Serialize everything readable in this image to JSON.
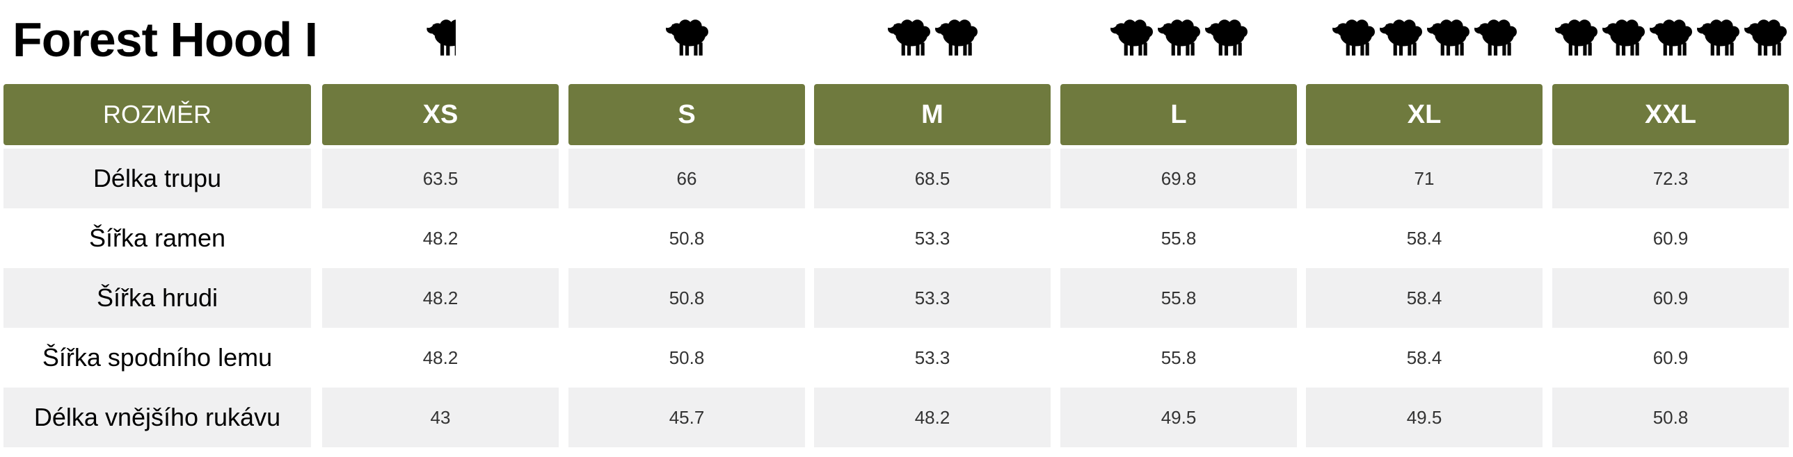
{
  "title": "Forest Hood I",
  "header": {
    "label": "ROZMĚR",
    "sizes": [
      "XS",
      "S",
      "M",
      "L",
      "XL",
      "XXL"
    ]
  },
  "sheep_icons": [
    {
      "size": "XS",
      "count": 1,
      "partial": true
    },
    {
      "size": "S",
      "count": 1,
      "partial": false
    },
    {
      "size": "M",
      "count": 2,
      "partial": false
    },
    {
      "size": "L",
      "count": 3,
      "partial": false
    },
    {
      "size": "XL",
      "count": 4,
      "partial": false
    },
    {
      "size": "XXL",
      "count": 5,
      "partial": false
    }
  ],
  "rows": [
    {
      "label": "Délka trupu",
      "values": [
        "63.5",
        "66",
        "68.5",
        "69.8",
        "71",
        "72.3"
      ]
    },
    {
      "label": "Šířka ramen",
      "values": [
        "48.2",
        "50.8",
        "53.3",
        "55.8",
        "58.4",
        "60.9"
      ]
    },
    {
      "label": "Šířka hrudi",
      "values": [
        "48.2",
        "50.8",
        "53.3",
        "55.8",
        "58.4",
        "60.9"
      ]
    },
    {
      "label": "Šířka spodního lemu",
      "values": [
        "48.2",
        "50.8",
        "53.3",
        "55.8",
        "58.4",
        "60.9"
      ]
    },
    {
      "label": "Délka vnějšího rukávu",
      "values": [
        "43",
        "45.7",
        "48.2",
        "49.5",
        "49.5",
        "50.8"
      ]
    }
  ],
  "colors": {
    "header_bg": "#6f7a3e",
    "row_alt_bg": "#f0f0f1"
  },
  "icon_name": "sheep-icon"
}
